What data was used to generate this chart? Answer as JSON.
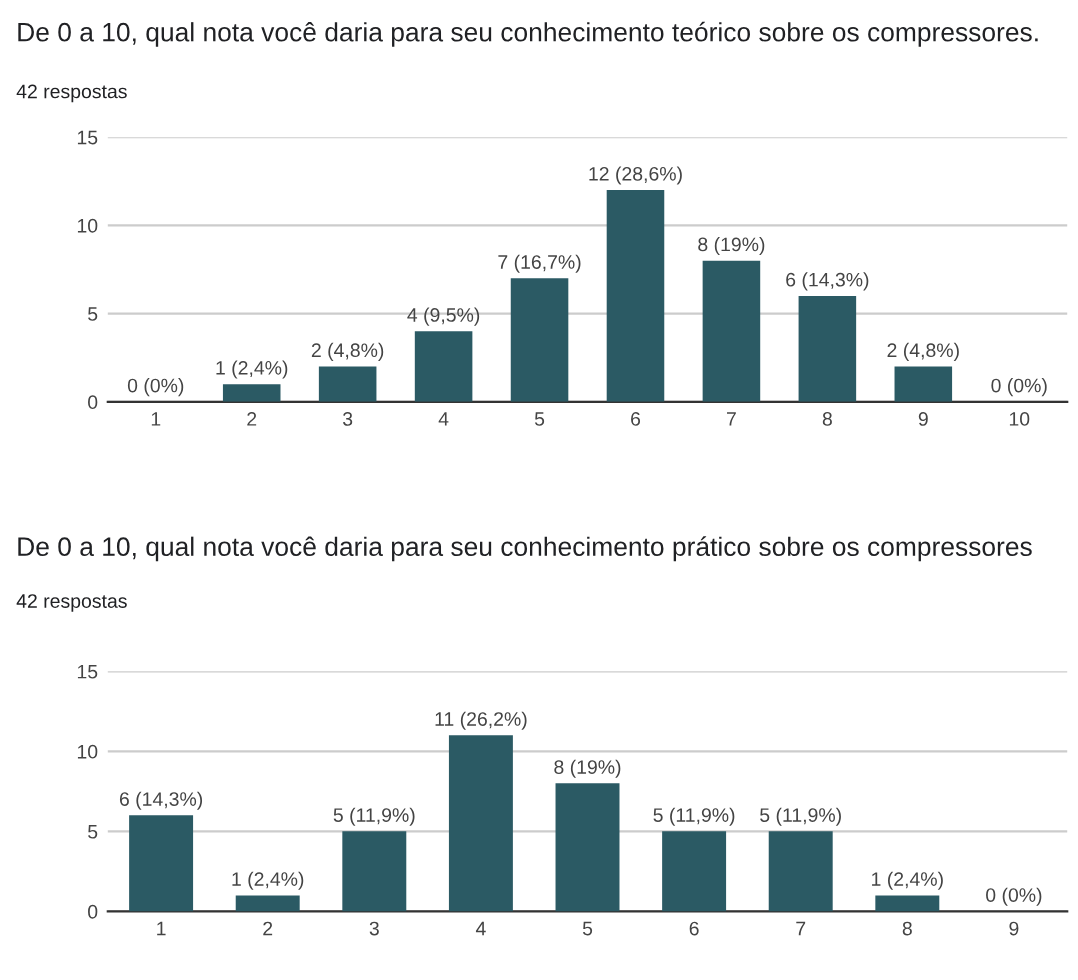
{
  "chart_data": [
    {
      "type": "bar",
      "title": "De 0 a 10, qual nota você daria para seu conhecimento teórico sobre os compressores.",
      "subtitle": "42 respostas",
      "categories": [
        "1",
        "2",
        "3",
        "4",
        "5",
        "6",
        "7",
        "8",
        "9",
        "10"
      ],
      "values": [
        0,
        1,
        2,
        4,
        7,
        12,
        8,
        6,
        2,
        0
      ],
      "color": "#2b5a64",
      "value_labels": [
        "0 (0%)",
        "1 (2,4%)",
        "2 (4,8%)",
        "4 (9,5%)",
        "7 (16,7%)",
        "12 (28,6%)",
        "8 (19%)",
        "6 (14,3%)",
        "2 (4,8%)",
        "0 (0%)"
      ],
      "ylim": [
        0,
        15
      ],
      "yticks": [
        0,
        5,
        10,
        15
      ],
      "grid": "y"
    },
    {
      "type": "bar",
      "title": "De 0 a 10, qual nota você daria para seu conhecimento prático sobre os compressores",
      "subtitle": "42 respostas",
      "categories": [
        "1",
        "2",
        "3",
        "4",
        "5",
        "6",
        "7",
        "8",
        "9"
      ],
      "values": [
        6,
        1,
        5,
        11,
        8,
        5,
        5,
        1,
        0
      ],
      "color": "#2b5a64",
      "value_labels": [
        "6 (14,3%)",
        "1 (2,4%)",
        "5 (11,9%)",
        "11 (26,2%)",
        "8 (19%)",
        "5 (11,9%)",
        "5 (11,9%)",
        "1 (2,4%)",
        "0 (0%)"
      ],
      "ylim": [
        0,
        15
      ],
      "yticks": [
        0,
        5,
        10,
        15
      ],
      "grid": "y"
    }
  ]
}
